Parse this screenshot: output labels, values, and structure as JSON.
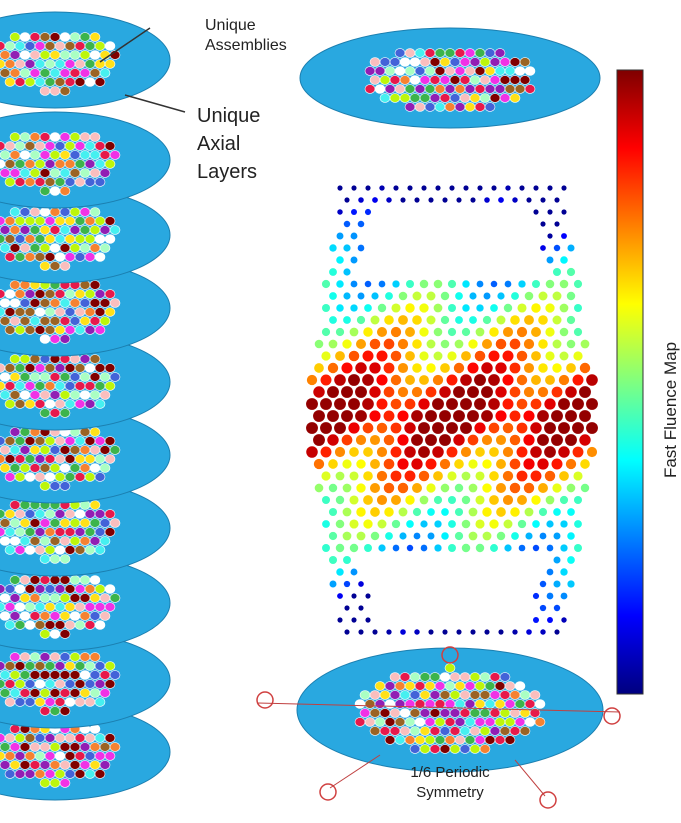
{
  "annotations": {
    "assemblies": [
      "Unique",
      "Assemblies"
    ],
    "axial_layers": [
      "Unique",
      "Axial",
      "Layers"
    ],
    "symmetry": [
      "1/6 Periodic",
      "Symmetry"
    ]
  },
  "colorbar": {
    "label": "Fast Fluence Map"
  }
}
